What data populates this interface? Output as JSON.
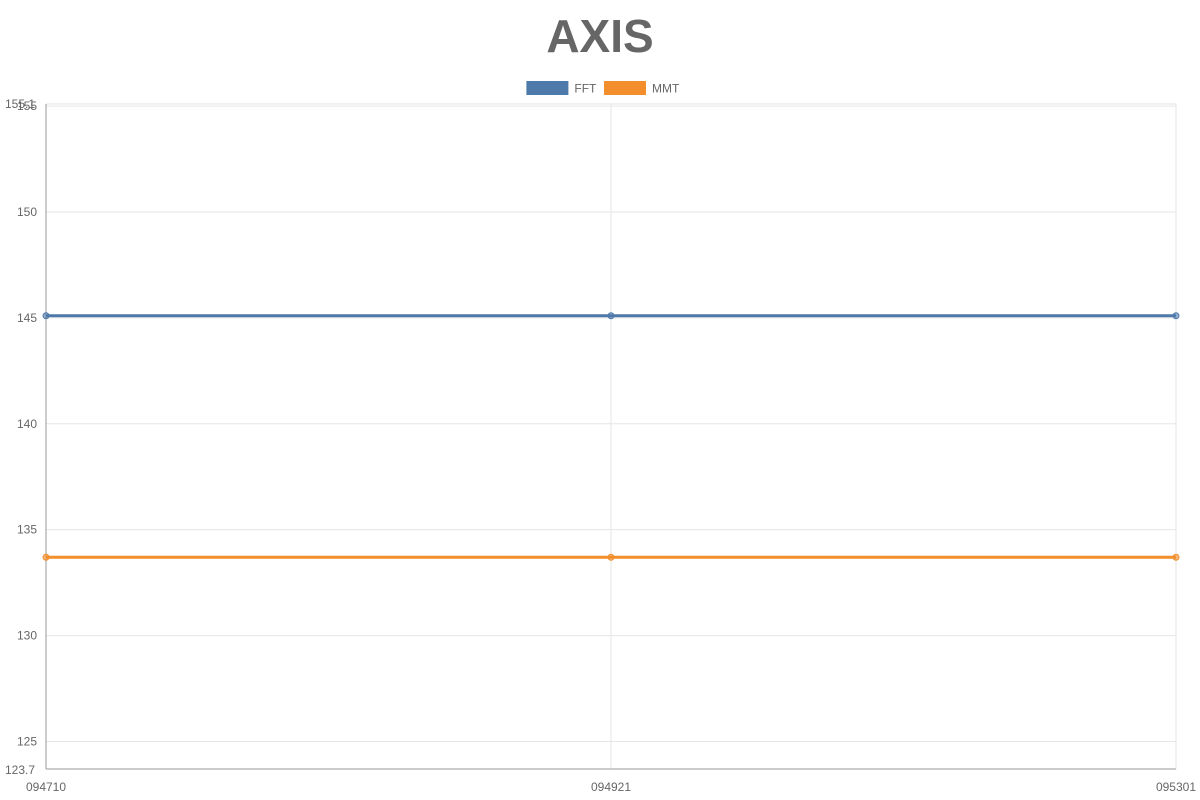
{
  "chart_data": {
    "type": "line",
    "title": "AXIS",
    "categories": [
      "094710",
      "094921",
      "095301"
    ],
    "series": [
      {
        "name": "FFT",
        "color": "#4e7aab",
        "values": [
          145.1,
          145.1,
          145.1
        ]
      },
      {
        "name": "MMT",
        "color": "#f28e2b",
        "values": [
          133.7,
          133.7,
          133.7
        ]
      }
    ],
    "ylim": [
      123.7,
      155.1
    ],
    "yticks": [
      125,
      130,
      135,
      140,
      145,
      150,
      155
    ],
    "ytick_labels": [
      "125",
      "130",
      "135",
      "140",
      "145",
      "150",
      "155"
    ],
    "ymin_label": "123.7",
    "ymax_label": "155.1",
    "xlabel": "",
    "ylabel": "",
    "grid": true,
    "legend_position": "top-center"
  }
}
